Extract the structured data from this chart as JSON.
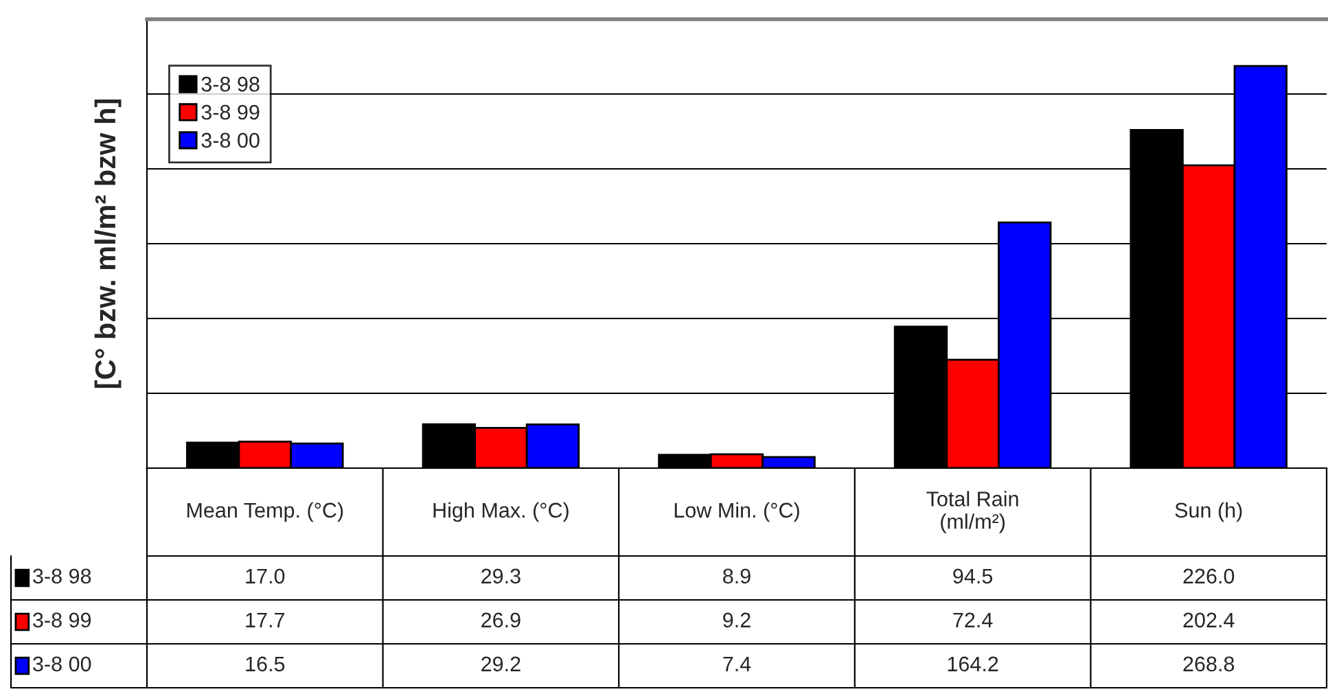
{
  "chart_data": {
    "type": "bar",
    "ylabel": "[C° bzw. ml/m² bzw h]",
    "categories": [
      "Mean Temp. (°C)",
      "High Max. (°C)",
      "Low Min. (°C)",
      "Total Rain\n(ml/m²)",
      "Sun (h)"
    ],
    "series": [
      {
        "name": "3-8 98",
        "color": "#000000",
        "values": [
          17.0,
          29.3,
          8.9,
          94.5,
          226.0
        ],
        "value_labels": [
          "17.0",
          "29.3",
          "8.9",
          "94.5",
          "226.0"
        ]
      },
      {
        "name": "3-8 99",
        "color": "#ff0000",
        "values": [
          17.7,
          26.9,
          9.2,
          72.4,
          202.4
        ],
        "value_labels": [
          "17.7",
          "26.9",
          "9.2",
          "72.4",
          "202.4"
        ]
      },
      {
        "name": "3-8 00",
        "color": "#0000ff",
        "values": [
          16.5,
          29.2,
          7.4,
          164.2,
          268.8
        ],
        "value_labels": [
          "16.5",
          "29.2",
          "7.4",
          "164.2",
          "268.8"
        ]
      }
    ],
    "ylim": [
      0,
      300
    ],
    "yticks": [
      {
        "value": 0,
        "label": null
      },
      {
        "value": 50,
        "label": null
      },
      {
        "value": 100,
        "label": null
      },
      {
        "value": 150,
        "label": null
      },
      {
        "value": 200,
        "label": null
      },
      {
        "value": 250,
        "label": null
      },
      {
        "value": 300,
        "label": null
      }
    ],
    "grid": "y",
    "legend": "top left"
  }
}
